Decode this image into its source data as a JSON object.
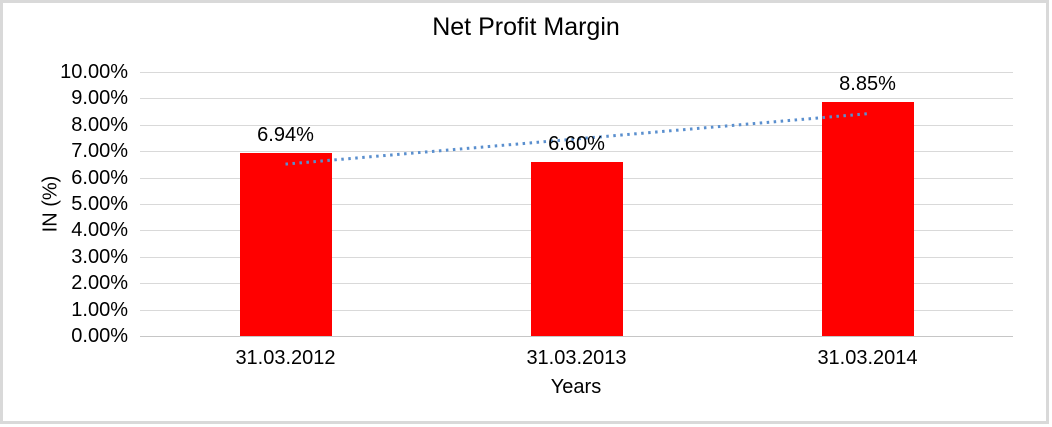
{
  "title": "Net Profit Margin",
  "y_axis": {
    "title": "IN (%)",
    "ticks": [
      "10.00%",
      "9.00%",
      "8.00%",
      "7.00%",
      "6.00%",
      "5.00%",
      "4.00%",
      "3.00%",
      "2.00%",
      "1.00%",
      "0.00%"
    ]
  },
  "x_axis": {
    "title": "Years",
    "ticks": [
      "31.03.2012",
      "31.03.2013",
      "31.03.2014"
    ]
  },
  "chart_data": {
    "type": "bar",
    "title": "Net Profit Margin",
    "categories": [
      "31.03.2012",
      "31.03.2013",
      "31.03.2014"
    ],
    "series": [
      {
        "name": "Net Profit Margin",
        "values": [
          6.94,
          6.6,
          8.85
        ]
      }
    ],
    "data_labels": [
      "6.94%",
      "6.60%",
      "8.85%"
    ],
    "xlabel": "Years",
    "ylabel": "IN (%)",
    "ylim": [
      0,
      10
    ],
    "y_tick_step": 1,
    "y_tick_format": "0.00%",
    "grid": true,
    "legend": false,
    "bar_color": "#ff0000",
    "trendline": {
      "type": "linear",
      "style": "dotted",
      "color": "#5a8fce",
      "start_value": 6.51,
      "end_value": 8.42
    }
  },
  "colors": {
    "bar": "#ff0000",
    "trendline": "#5a8fce",
    "gridline": "#d9d9d9",
    "axis_line": "#c6c6c6",
    "frame_border": "#d9d9d9",
    "text": "#000000"
  }
}
